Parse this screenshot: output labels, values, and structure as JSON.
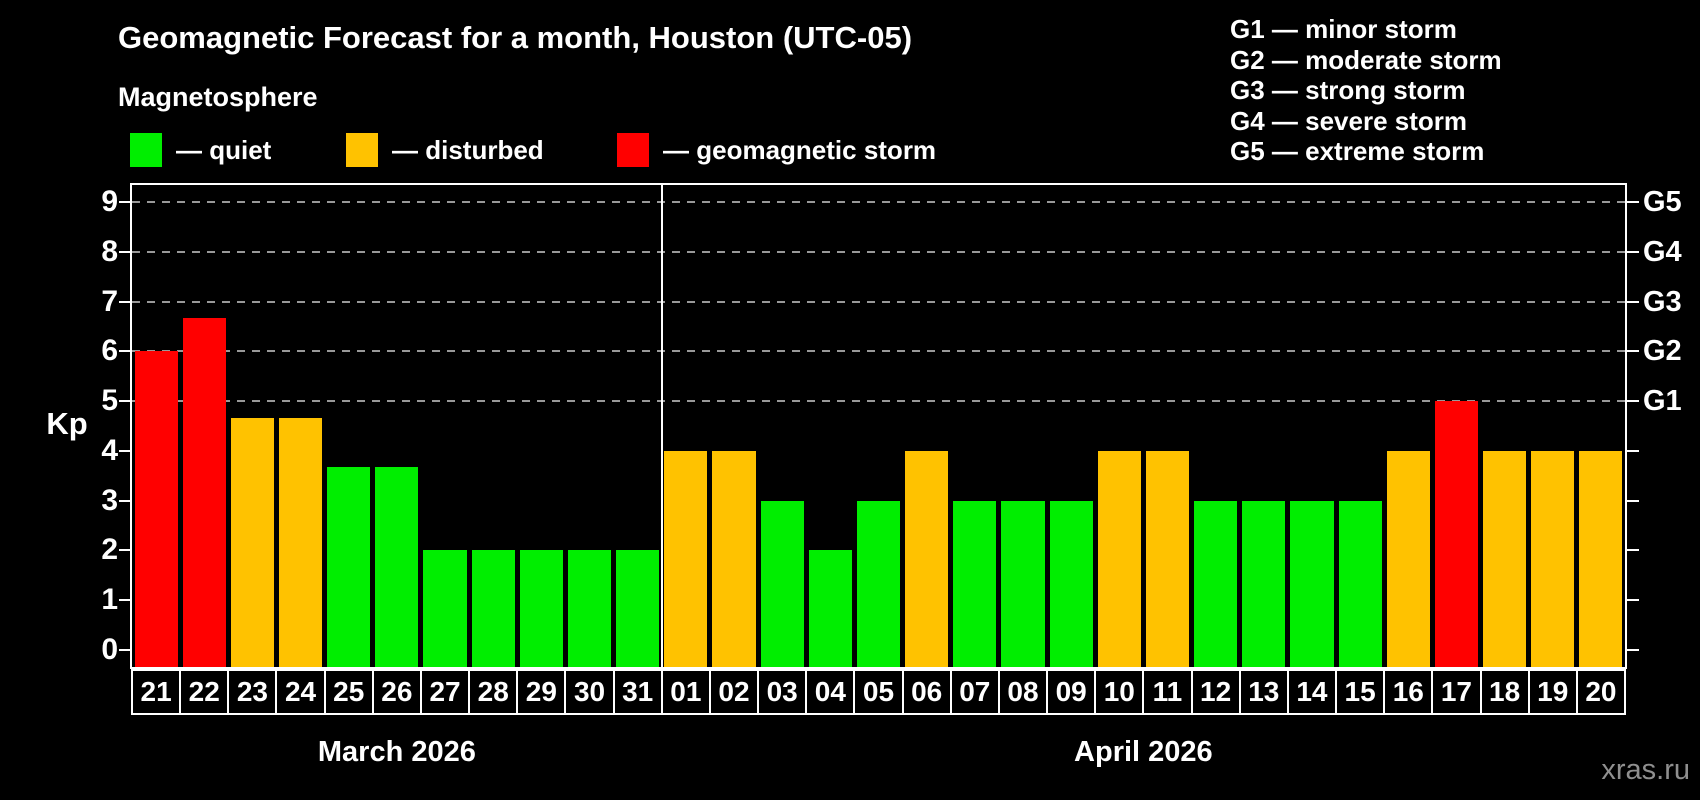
{
  "title": "Geomagnetic Forecast for a month, Houston (UTC-05)",
  "subtitle": "Magnetosphere",
  "legend": {
    "dash": "—",
    "items": [
      {
        "key": "quiet",
        "label": "quiet"
      },
      {
        "key": "disturbed",
        "label": "disturbed"
      },
      {
        "key": "storm",
        "label": "geomagnetic storm"
      }
    ]
  },
  "g_legend": {
    "sep": "—",
    "items": [
      {
        "code": "G1",
        "label": "minor storm"
      },
      {
        "code": "G2",
        "label": "moderate storm"
      },
      {
        "code": "G3",
        "label": "strong storm"
      },
      {
        "code": "G4",
        "label": "severe storm"
      },
      {
        "code": "G5",
        "label": "extreme storm"
      }
    ]
  },
  "colors": {
    "quiet": "#00ee00",
    "disturbed": "#ffc200",
    "storm": "#ff0000",
    "frame": "#ffffff",
    "grid": "#999999",
    "text": "#ffffff",
    "watermark": "#8f8f8f"
  },
  "watermark": "xras.ru",
  "chart_data": {
    "type": "bar",
    "ylabel": "Kp",
    "ylim": [
      -0.35,
      9.35
    ],
    "y_ticks": [
      0,
      1,
      2,
      3,
      4,
      5,
      6,
      7,
      8,
      9
    ],
    "grid_levels": [
      5,
      6,
      7,
      8,
      9
    ],
    "grid_on": true,
    "legend_position": "top",
    "right_axis_labels": [
      {
        "label": "G1",
        "kp": 5
      },
      {
        "label": "G2",
        "kp": 6
      },
      {
        "label": "G3",
        "kp": 7
      },
      {
        "label": "G4",
        "kp": 8
      },
      {
        "label": "G5",
        "kp": 9
      }
    ],
    "months": [
      {
        "name": "March 2026",
        "days": [
          {
            "day": "21",
            "kp": 6.0,
            "condition": "storm"
          },
          {
            "day": "22",
            "kp": 6.67,
            "condition": "storm"
          },
          {
            "day": "23",
            "kp": 4.67,
            "condition": "disturbed"
          },
          {
            "day": "24",
            "kp": 4.67,
            "condition": "disturbed"
          },
          {
            "day": "25",
            "kp": 3.67,
            "condition": "quiet"
          },
          {
            "day": "26",
            "kp": 3.67,
            "condition": "quiet"
          },
          {
            "day": "27",
            "kp": 2.0,
            "condition": "quiet"
          },
          {
            "day": "28",
            "kp": 2.0,
            "condition": "quiet"
          },
          {
            "day": "29",
            "kp": 2.0,
            "condition": "quiet"
          },
          {
            "day": "30",
            "kp": 2.0,
            "condition": "quiet"
          },
          {
            "day": "31",
            "kp": 2.0,
            "condition": "quiet"
          }
        ]
      },
      {
        "name": "April 2026",
        "days": [
          {
            "day": "01",
            "kp": 4.0,
            "condition": "disturbed"
          },
          {
            "day": "02",
            "kp": 4.0,
            "condition": "disturbed"
          },
          {
            "day": "03",
            "kp": 3.0,
            "condition": "quiet"
          },
          {
            "day": "04",
            "kp": 2.0,
            "condition": "quiet"
          },
          {
            "day": "05",
            "kp": 3.0,
            "condition": "quiet"
          },
          {
            "day": "06",
            "kp": 4.0,
            "condition": "disturbed"
          },
          {
            "day": "07",
            "kp": 3.0,
            "condition": "quiet"
          },
          {
            "day": "08",
            "kp": 3.0,
            "condition": "quiet"
          },
          {
            "day": "09",
            "kp": 3.0,
            "condition": "quiet"
          },
          {
            "day": "10",
            "kp": 4.0,
            "condition": "disturbed"
          },
          {
            "day": "11",
            "kp": 4.0,
            "condition": "disturbed"
          },
          {
            "day": "12",
            "kp": 3.0,
            "condition": "quiet"
          },
          {
            "day": "13",
            "kp": 3.0,
            "condition": "quiet"
          },
          {
            "day": "14",
            "kp": 3.0,
            "condition": "quiet"
          },
          {
            "day": "15",
            "kp": 3.0,
            "condition": "quiet"
          },
          {
            "day": "16",
            "kp": 4.0,
            "condition": "disturbed"
          },
          {
            "day": "17",
            "kp": 5.0,
            "condition": "storm"
          },
          {
            "day": "18",
            "kp": 4.0,
            "condition": "disturbed"
          },
          {
            "day": "19",
            "kp": 4.0,
            "condition": "disturbed"
          },
          {
            "day": "20",
            "kp": 4.0,
            "condition": "disturbed"
          }
        ]
      }
    ]
  }
}
